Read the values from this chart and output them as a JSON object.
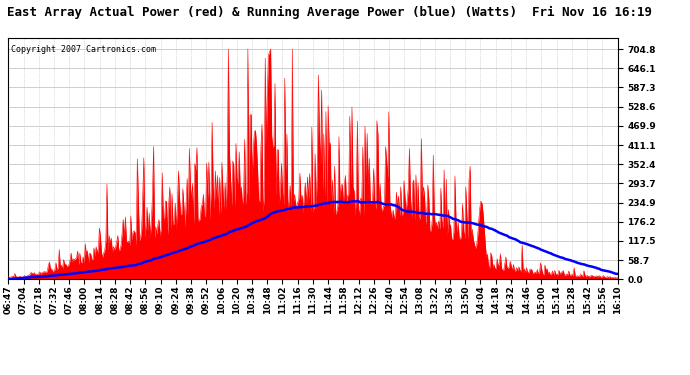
{
  "title": "East Array Actual Power (red) & Running Average Power (blue) (Watts)  Fri Nov 16 16:19",
  "copyright": "Copyright 2007 Cartronics.com",
  "yticks": [
    0.0,
    58.7,
    117.5,
    176.2,
    234.9,
    293.7,
    352.4,
    411.1,
    469.9,
    528.6,
    587.3,
    646.1,
    704.8
  ],
  "ymax": 740,
  "ymin": 0,
  "bg_color": "#ffffff",
  "plot_bg": "#ffffff",
  "grid_color": "#bbbbbb",
  "actual_color": "#ff0000",
  "avg_color": "#0000ff",
  "title_fontsize": 9,
  "copyright_fontsize": 6,
  "tick_fontsize": 6.5,
  "xtick_labels": [
    "06:47",
    "07:04",
    "07:18",
    "07:32",
    "07:46",
    "08:00",
    "08:14",
    "08:28",
    "08:42",
    "08:56",
    "09:10",
    "09:24",
    "09:38",
    "09:52",
    "10:06",
    "10:20",
    "10:34",
    "10:48",
    "11:02",
    "11:16",
    "11:30",
    "11:44",
    "11:58",
    "12:12",
    "12:26",
    "12:40",
    "12:54",
    "13:08",
    "13:22",
    "13:36",
    "13:50",
    "14:04",
    "14:18",
    "14:32",
    "14:46",
    "15:00",
    "15:14",
    "15:28",
    "15:42",
    "15:56",
    "16:10"
  ]
}
